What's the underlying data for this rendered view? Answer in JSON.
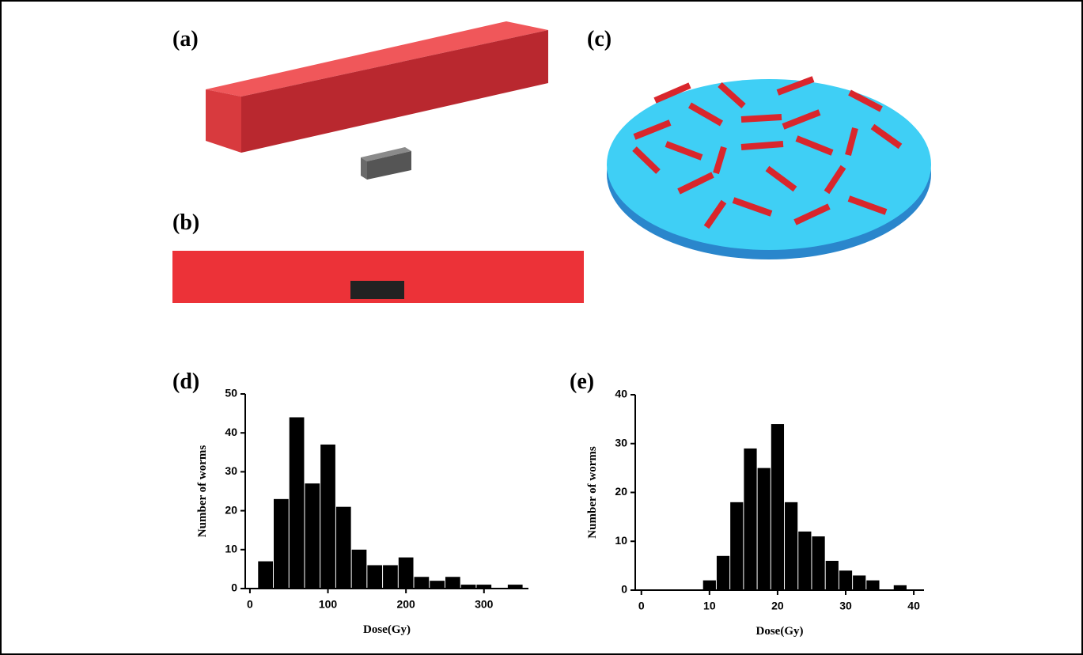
{
  "panel_labels": [
    "(a)",
    "(b)",
    "(c)"
  ],
  "chart_data": [
    {
      "type": "histogram",
      "label": "(d)",
      "y_label": "Number of worms",
      "x_label": "Dose(Gy)",
      "bins": [
        10,
        30,
        50,
        70,
        90,
        110,
        130,
        150,
        170,
        190,
        210,
        230,
        250,
        270,
        290,
        310,
        330,
        350
      ],
      "values": [
        7,
        23,
        44,
        27,
        37,
        21,
        10,
        6,
        6,
        8,
        3,
        2,
        3,
        1,
        1,
        0,
        1
      ],
      "color": "#000000",
      "xlim": [
        -6,
        357
      ],
      "xticks": [
        0,
        100,
        200,
        300
      ],
      "ylim": [
        0,
        50
      ],
      "yticks": [
        0,
        10,
        20,
        30,
        40,
        50
      ]
    },
    {
      "type": "histogram",
      "label": "(e)",
      "y_label": "Number of worms",
      "x_label": "Dose(Gy)",
      "bins": [
        9,
        11,
        13,
        15,
        17,
        19,
        21,
        23,
        25,
        27,
        29,
        31,
        33,
        35,
        37,
        39
      ],
      "values": [
        2,
        7,
        18,
        29,
        25,
        34,
        18,
        12,
        11,
        6,
        4,
        3,
        2,
        0,
        1
      ],
      "color": "#000000",
      "xlim": [
        -0.9,
        41.5
      ],
      "xticks": [
        0,
        10,
        20,
        30,
        40
      ],
      "ylim": [
        0,
        40
      ],
      "yticks": [
        0,
        10,
        20,
        30,
        40
      ]
    }
  ]
}
